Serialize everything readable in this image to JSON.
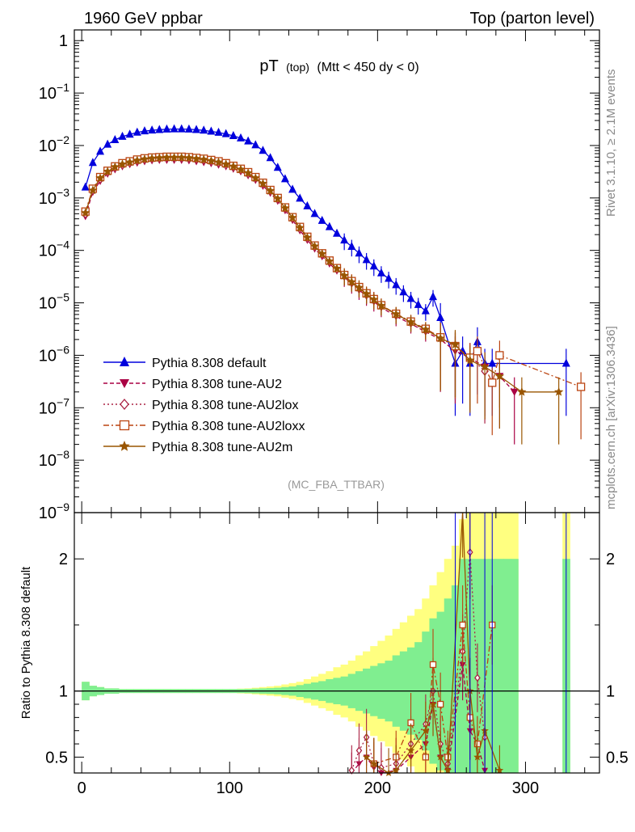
{
  "header": {
    "left": "1960 GeV ppbar",
    "right": "Top (parton level)"
  },
  "side": {
    "rivet": "Rivet 3.1.10, ≥ 2.1M events",
    "mcplots": "mcplots.cern.ch [arXiv:1306.3436]"
  },
  "main_plot": {
    "title_main": "pT",
    "title_sub": "(top)",
    "title_cut": "(Mtt < 450 dy < 0)",
    "analysis": "(MC_FBA_TTBAR)",
    "y_ticks": [
      {
        "value": 1,
        "mant": "1",
        "exp": ""
      },
      {
        "value": 0.1,
        "mant": "10",
        "exp": "−1"
      },
      {
        "value": 0.01,
        "mant": "10",
        "exp": "−2"
      },
      {
        "value": 0.001,
        "mant": "10",
        "exp": "−3"
      },
      {
        "value": 0.0001,
        "mant": "10",
        "exp": "−4"
      },
      {
        "value": 1e-05,
        "mant": "10",
        "exp": "−5"
      },
      {
        "value": 1e-06,
        "mant": "10",
        "exp": "−6"
      },
      {
        "value": 1e-07,
        "mant": "10",
        "exp": "−7"
      },
      {
        "value": 1e-08,
        "mant": "10",
        "exp": "−8"
      },
      {
        "value": 1e-09,
        "mant": "10",
        "exp": "−9"
      }
    ]
  },
  "ratio_plot": {
    "ylabel": "Ratio to Pythia 8.308 default",
    "y_ticks": [
      "0.5",
      "1",
      "2"
    ],
    "y_tick_values": [
      0.5,
      1,
      2
    ],
    "ylim": [
      0.38,
      2.35
    ]
  },
  "chart_data": {
    "type": "line",
    "log_y": true,
    "xlim": [
      -5,
      350
    ],
    "ylim": [
      1e-09,
      1.6
    ],
    "x_ticks": [
      "0",
      "100",
      "200",
      "300"
    ],
    "x_tick_values": [
      0,
      100,
      200,
      300
    ],
    "legend_placement": "bottom-left",
    "bin_width": 5,
    "series": [
      {
        "name": "Pythia 8.308 default",
        "color": "#0000dd",
        "marker": "triangle-up",
        "dash": "",
        "x": [
          2.5,
          7.5,
          12.5,
          17.5,
          22.5,
          27.5,
          32.5,
          37.5,
          42.5,
          47.5,
          52.5,
          57.5,
          62.5,
          67.5,
          72.5,
          77.5,
          82.5,
          87.5,
          92.5,
          97.5,
          102.5,
          107.5,
          112.5,
          117.5,
          122.5,
          127.5,
          132.5,
          137.5,
          142.5,
          147.5,
          152.5,
          157.5,
          162.5,
          167.5,
          172.5,
          177.5,
          182.5,
          187.5,
          192.5,
          197.5,
          202.5,
          207.5,
          212.5,
          217.5,
          222.5,
          227.5,
          232.5,
          237.5,
          242.5,
          252.5,
          257.5,
          262.5,
          267.5,
          272.5,
          277.5,
          327.5
        ],
        "y": [
          0.0016,
          0.0047,
          0.0077,
          0.0105,
          0.0128,
          0.0148,
          0.0163,
          0.0178,
          0.0188,
          0.0195,
          0.02,
          0.0204,
          0.0206,
          0.0206,
          0.0204,
          0.02,
          0.0194,
          0.0186,
          0.0177,
          0.0166,
          0.0153,
          0.0138,
          0.0121,
          0.0102,
          0.008,
          0.0058,
          0.0038,
          0.0023,
          0.00145,
          0.00098,
          0.0007,
          0.0005,
          0.00037,
          0.00028,
          0.00021,
          0.000156,
          0.000118,
          8.8e-05,
          6.6e-05,
          5e-05,
          3.7e-05,
          2.9e-05,
          2.2e-05,
          1.6e-05,
          1.2e-05,
          9.2e-06,
          7e-06,
          1.3e-05,
          5.2e-06,
          7e-07,
          1.2e-06,
          7e-07,
          1.8e-06,
          7e-07,
          7e-07,
          7e-07
        ]
      },
      {
        "name": "Pythia 8.308 tune-AU2",
        "color": "#aa0044",
        "marker": "triangle-down",
        "dash": "5,3",
        "x": [
          2.5,
          7.5,
          12.5,
          17.5,
          22.5,
          27.5,
          32.5,
          37.5,
          42.5,
          47.5,
          52.5,
          57.5,
          62.5,
          67.5,
          72.5,
          77.5,
          82.5,
          87.5,
          92.5,
          97.5,
          102.5,
          107.5,
          112.5,
          117.5,
          122.5,
          127.5,
          132.5,
          137.5,
          142.5,
          147.5,
          152.5,
          157.5,
          162.5,
          167.5,
          172.5,
          177.5,
          182.5,
          187.5,
          192.5,
          197.5,
          202.5,
          212.5,
          222.5,
          232.5,
          242.5,
          252.5,
          262.5,
          272.5,
          282.5,
          292.5
        ],
        "y": [
          0.00045,
          0.0013,
          0.0021,
          0.0029,
          0.0035,
          0.004,
          0.0044,
          0.0047,
          0.005,
          0.0052,
          0.0053,
          0.0053,
          0.0053,
          0.0053,
          0.0052,
          0.005,
          0.0048,
          0.0046,
          0.0043,
          0.004,
          0.0036,
          0.0032,
          0.0027,
          0.0022,
          0.0017,
          0.00125,
          0.00088,
          0.00058,
          0.00038,
          0.00024,
          0.000158,
          0.000108,
          7.7e-05,
          5.6e-05,
          4.1e-05,
          3.1e-05,
          2.3e-05,
          1.75e-05,
          1.35e-05,
          1.05e-05,
          8.2e-06,
          5.5e-06,
          4e-06,
          2.8e-06,
          2e-06,
          1.2e-06,
          9e-07,
          6e-07,
          4e-07,
          2e-07
        ]
      },
      {
        "name": "Pythia 8.308 tune-AU2lox",
        "color": "#aa2244",
        "marker": "diamond",
        "dash": "2,3",
        "x": [
          2.5,
          7.5,
          12.5,
          17.5,
          22.5,
          27.5,
          32.5,
          37.5,
          42.5,
          47.5,
          52.5,
          57.5,
          62.5,
          67.5,
          72.5,
          77.5,
          82.5,
          87.5,
          92.5,
          97.5,
          102.5,
          107.5,
          112.5,
          117.5,
          122.5,
          127.5,
          132.5,
          137.5,
          142.5,
          147.5,
          152.5,
          157.5,
          162.5,
          167.5,
          172.5,
          177.5,
          182.5,
          187.5,
          192.5,
          197.5,
          202.5,
          212.5,
          222.5,
          232.5,
          242.5,
          252.5,
          262.5,
          272.5
        ],
        "y": [
          0.0005,
          0.0014,
          0.0023,
          0.0031,
          0.0038,
          0.0043,
          0.0047,
          0.0051,
          0.0054,
          0.0056,
          0.0057,
          0.0058,
          0.0058,
          0.0058,
          0.0057,
          0.0055,
          0.0053,
          0.005,
          0.0047,
          0.0043,
          0.0039,
          0.0034,
          0.0029,
          0.0024,
          0.00185,
          0.00135,
          0.00095,
          0.00063,
          0.00041,
          0.00026,
          0.000172,
          0.000118,
          8.4e-05,
          6.1e-05,
          4.4e-05,
          3.3e-05,
          2.5e-05,
          1.9e-05,
          1.45e-05,
          1.2e-05,
          8.8e-06,
          6e-06,
          4.2e-06,
          3e-06,
          2.2e-06,
          1.4e-06,
          9e-07,
          5e-07
        ]
      },
      {
        "name": "Pythia 8.308 tune-AU2loxx",
        "color": "#bb4411",
        "marker": "square-open",
        "dash": "7,3,2,3",
        "x": [
          2.5,
          7.5,
          12.5,
          17.5,
          22.5,
          27.5,
          32.5,
          37.5,
          42.5,
          47.5,
          52.5,
          57.5,
          62.5,
          67.5,
          72.5,
          77.5,
          82.5,
          87.5,
          92.5,
          97.5,
          102.5,
          107.5,
          112.5,
          117.5,
          122.5,
          127.5,
          132.5,
          137.5,
          142.5,
          147.5,
          152.5,
          157.5,
          162.5,
          167.5,
          172.5,
          177.5,
          182.5,
          187.5,
          192.5,
          197.5,
          202.5,
          212.5,
          222.5,
          232.5,
          242.5,
          252.5,
          262.5,
          267.5,
          277.5,
          282.5,
          337.5
        ],
        "y": [
          0.00055,
          0.0015,
          0.0025,
          0.0033,
          0.004,
          0.0046,
          0.005,
          0.0054,
          0.0057,
          0.0059,
          0.006,
          0.0061,
          0.0061,
          0.0061,
          0.006,
          0.0058,
          0.0056,
          0.0053,
          0.005,
          0.0046,
          0.0041,
          0.0036,
          0.0031,
          0.0025,
          0.00195,
          0.00142,
          0.001,
          0.00066,
          0.00043,
          0.00028,
          0.000182,
          0.000124,
          8.8e-05,
          6.4e-05,
          4.6e-05,
          3.4e-05,
          2.6e-05,
          2e-05,
          1.52e-05,
          1.18e-05,
          9e-06,
          6.2e-06,
          4.4e-06,
          3.2e-06,
          2.2e-06,
          1.5e-06,
          9e-07,
          1.2e-06,
          3e-07,
          1e-06,
          2.5e-07
        ]
      },
      {
        "name": "Pythia 8.308 tune-AU2m",
        "color": "#995500",
        "marker": "star",
        "dash": "",
        "x": [
          2.5,
          7.5,
          12.5,
          17.5,
          22.5,
          27.5,
          32.5,
          37.5,
          42.5,
          47.5,
          52.5,
          57.5,
          62.5,
          67.5,
          72.5,
          77.5,
          82.5,
          87.5,
          92.5,
          97.5,
          102.5,
          107.5,
          112.5,
          117.5,
          122.5,
          127.5,
          132.5,
          137.5,
          142.5,
          147.5,
          152.5,
          157.5,
          162.5,
          167.5,
          172.5,
          177.5,
          182.5,
          187.5,
          192.5,
          197.5,
          202.5,
          212.5,
          222.5,
          232.5,
          242.5,
          252.5,
          262.5,
          272.5,
          282.5,
          297.5,
          322.5
        ],
        "y": [
          0.00052,
          0.0014,
          0.0024,
          0.0032,
          0.0039,
          0.0044,
          0.0048,
          0.0052,
          0.0055,
          0.0057,
          0.0058,
          0.0059,
          0.0059,
          0.0059,
          0.0058,
          0.0056,
          0.0054,
          0.0051,
          0.0048,
          0.0044,
          0.004,
          0.0035,
          0.003,
          0.0024,
          0.00188,
          0.00137,
          0.00097,
          0.00064,
          0.00042,
          0.00027,
          0.000176,
          0.00012,
          8.6e-05,
          6.2e-05,
          4.5e-05,
          3.3e-05,
          2.5e-05,
          1.95e-05,
          1.48e-05,
          1.15e-05,
          8.8e-06,
          6.1e-06,
          4.3e-06,
          3.1e-06,
          2.1e-06,
          1.6e-06,
          8e-07,
          6e-07,
          4e-07,
          2e-07,
          2e-07
        ]
      }
    ],
    "ratio_band": {
      "x_edges": [
        0,
        5,
        10,
        15,
        20,
        25,
        30,
        35,
        40,
        45,
        50,
        55,
        60,
        65,
        70,
        75,
        80,
        85,
        90,
        95,
        100,
        105,
        110,
        115,
        120,
        125,
        130,
        135,
        140,
        145,
        150,
        155,
        160,
        165,
        170,
        175,
        180,
        185,
        190,
        195,
        200,
        205,
        210,
        215,
        220,
        225,
        230,
        235,
        240,
        245,
        250,
        255,
        260,
        265,
        270,
        275,
        280,
        285,
        290,
        295
      ],
      "stat_rel": [
        0.07,
        0.04,
        0.03,
        0.02,
        0.02,
        0.015,
        0.015,
        0.015,
        0.015,
        0.015,
        0.015,
        0.015,
        0.015,
        0.015,
        0.015,
        0.015,
        0.015,
        0.015,
        0.015,
        0.015,
        0.015,
        0.015,
        0.016,
        0.018,
        0.02,
        0.022,
        0.025,
        0.03,
        0.035,
        0.045,
        0.055,
        0.065,
        0.075,
        0.09,
        0.1,
        0.11,
        0.13,
        0.15,
        0.17,
        0.19,
        0.21,
        0.23,
        0.27,
        0.3,
        0.33,
        0.37,
        0.45,
        0.55,
        0.6,
        0.7,
        0.8,
        1.0,
        1.0,
        1.0,
        1.0,
        1.0,
        1.0,
        1.0,
        1.0
      ],
      "tot_rel": [
        0.07,
        0.04,
        0.03,
        0.02,
        0.02,
        0.015,
        0.015,
        0.015,
        0.015,
        0.015,
        0.015,
        0.015,
        0.015,
        0.015,
        0.015,
        0.015,
        0.015,
        0.015,
        0.015,
        0.015,
        0.015,
        0.018,
        0.02,
        0.025,
        0.03,
        0.035,
        0.04,
        0.05,
        0.06,
        0.07,
        0.09,
        0.11,
        0.13,
        0.15,
        0.18,
        0.2,
        0.23,
        0.27,
        0.3,
        0.34,
        0.38,
        0.42,
        0.47,
        0.52,
        0.57,
        0.62,
        0.7,
        0.8,
        0.9,
        1.0,
        1.1,
        1.3,
        1.5,
        1.6,
        1.7,
        1.8,
        1.9,
        1.95,
        2.0
      ],
      "extra_bins": [
        {
          "x0": 325,
          "x1": 330,
          "stat_rel": 1.0,
          "tot_rel": 2.0
        }
      ]
    },
    "ratio_series": [
      {
        "name": "Pythia 8.308 tune-AU2",
        "x": [
          182.5,
          187.5,
          192.5,
          197.5,
          202.5,
          212.5,
          222.5,
          232.5,
          237.5,
          242.5,
          247.5,
          257.5,
          262.5,
          267.5,
          272.5
        ],
        "y": [
          0.35,
          0.45,
          0.5,
          0.42,
          0.38,
          0.4,
          0.5,
          0.6,
          0.9,
          0.5,
          0.4,
          1.2,
          0.7,
          0.6,
          0.4
        ]
      },
      {
        "name": "Pythia 8.308 tune-AU2lox",
        "x": [
          182.5,
          187.5,
          192.5,
          197.5,
          202.5,
          212.5,
          222.5,
          232.5,
          237.5,
          242.5,
          247.5,
          257.5,
          262.5,
          267.5,
          272.5
        ],
        "y": [
          0.4,
          0.55,
          0.65,
          0.45,
          0.42,
          0.45,
          0.6,
          0.75,
          1.0,
          0.6,
          0.45,
          1.3,
          2.05,
          1.1,
          0.65
        ]
      },
      {
        "name": "Pythia 8.308 tune-AU2loxx",
        "x": [
          197.5,
          212.5,
          222.5,
          232.5,
          237.5,
          242.5,
          247.5,
          257.5,
          262.5,
          267.5,
          277.5
        ],
        "y": [
          0.45,
          0.5,
          0.76,
          0.5,
          1.2,
          0.9,
          0.5,
          1.5,
          0.8,
          0.6,
          1.5
        ]
      },
      {
        "name": "Pythia 8.308 tune-AU2m",
        "x": [
          192.5,
          197.5,
          207.5,
          212.5,
          222.5,
          232.5,
          237.5,
          242.5,
          247.5,
          257.5,
          262.5,
          267.5,
          272.5,
          282.5
        ],
        "y": [
          0.5,
          0.45,
          0.38,
          0.4,
          0.55,
          0.7,
          0.9,
          0.5,
          0.4,
          2.4,
          1.0,
          0.5,
          0.7,
          0.4
        ]
      }
    ]
  }
}
